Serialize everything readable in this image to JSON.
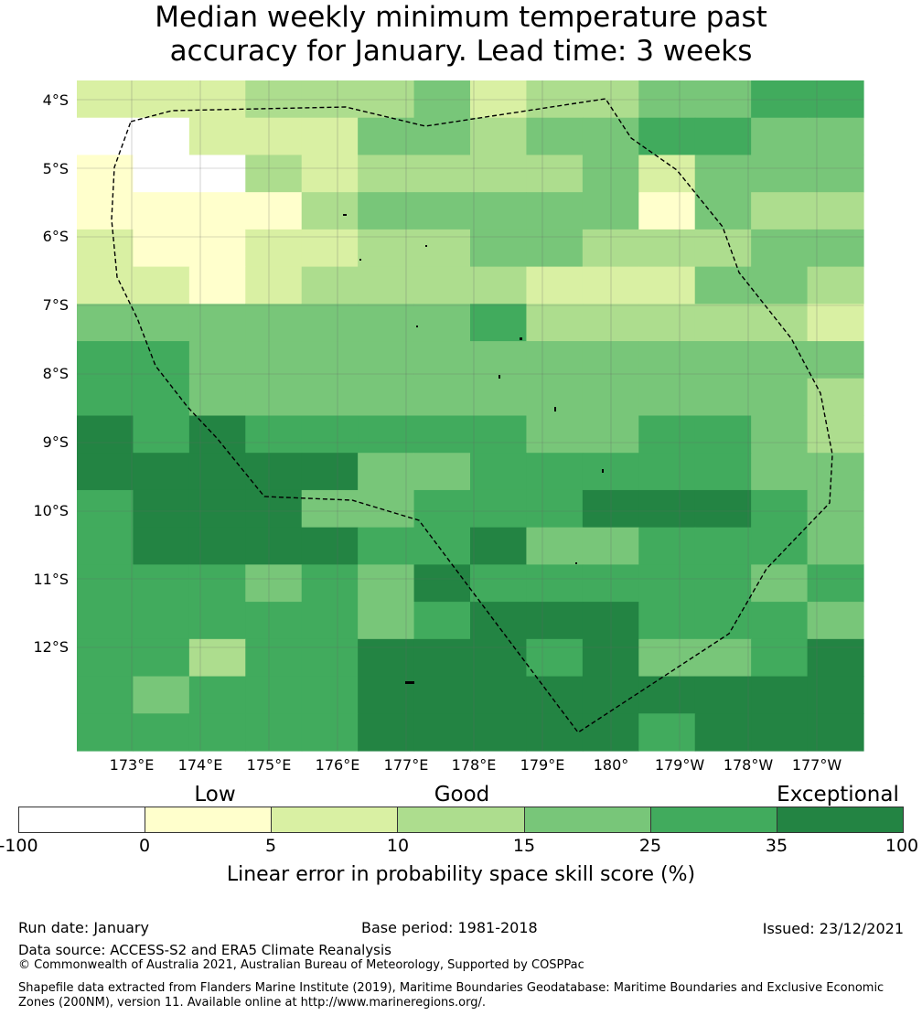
{
  "title": {
    "line1": "Median weekly minimum temperature past",
    "line2": "accuracy for January. Lead time: 3 weeks"
  },
  "map": {
    "lat_labels": [
      "4°S",
      "5°S",
      "6°S",
      "7°S",
      "8°S",
      "9°S",
      "10°S",
      "11°S",
      "12°S"
    ],
    "lon_labels": [
      "173°E",
      "174°E",
      "175°E",
      "176°E",
      "177°E",
      "178°E",
      "179°E",
      "180°",
      "179°W",
      "178°W",
      "177°W"
    ],
    "grid_columns": 14,
    "grid_rows": 18,
    "cell_categories": [
      "22233342334455",
      "00222443445544",
      "10032333342444",
      "11113444441433",
      "21122334433344",
      "22123333222443",
      "44444445333332",
      "55444444444444",
      "55444444444443",
      "65655555445543",
      "66666445555544",
      "56664455566654",
      "56666556445554",
      "55545465555545",
      "55555456665554",
      "55355666564456",
      "54555666666666",
      "55555666665666"
    ],
    "colors": {
      "c0": "#ffffff",
      "c1": "#ffffcc",
      "c2": "#d9f0a3",
      "c3": "#addd8e",
      "c4": "#78c679",
      "c5": "#41ab5d",
      "c6": "#238443",
      "grid": "#666666",
      "boundary": "#000000"
    },
    "boundary_label": "EEZ boundary (dashed)"
  },
  "legend": {
    "categories": [
      "Low",
      "Good",
      "Exceptional"
    ],
    "ticks": [
      "-100",
      "0",
      "5",
      "10",
      "15",
      "25",
      "35",
      "100"
    ],
    "label": "Linear error in probability space skill score (%)"
  },
  "footer": {
    "run_date": "Run date: January",
    "base_period": "Base period: 1981-2018",
    "issued": "Issued: 23/12/2021",
    "data_source": "Data source: ACCESS-S2 and ERA5 Climate Reanalysis",
    "copyright": "© Commonwealth of Australia 2021, Australian Bureau of Meteorology, Supported by COSPPac",
    "shapefile": "Shapefile data extracted from Flanders Marine Institute (2019), Maritime Boundaries Geodatabase: Maritime Boundaries and Exclusive Economic Zones (200NM), version 11. Available online at http://www.marineregions.org/."
  }
}
